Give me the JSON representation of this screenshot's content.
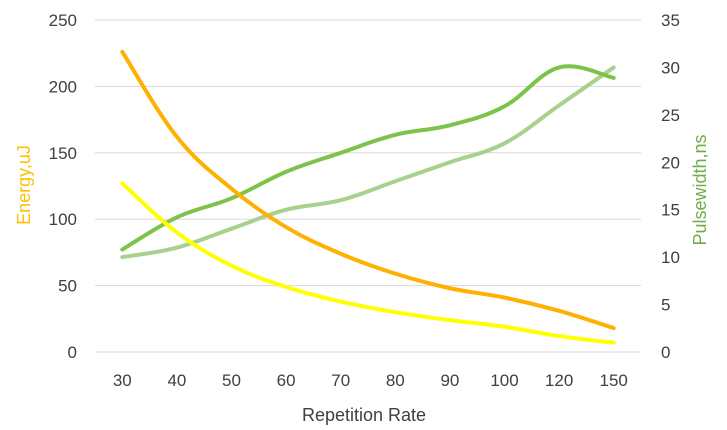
{
  "chart_data": {
    "type": "line",
    "xlabel": "Repetition Rate",
    "ylabel_left": "Energy,uJ",
    "ylabel_right": "Pulsewidth,ns",
    "categories": [
      "30",
      "40",
      "50",
      "60",
      "70",
      "80",
      "90",
      "100",
      "120",
      "150"
    ],
    "ylim_left": [
      0,
      250
    ],
    "ylim_right": [
      0,
      35
    ],
    "yticks_left": [
      "0",
      "50",
      "100",
      "150",
      "200",
      "250"
    ],
    "yticks_right": [
      "0",
      "5",
      "10",
      "15",
      "20",
      "25",
      "30",
      "35"
    ],
    "grid": true,
    "series": [
      {
        "axis": "left",
        "color": "#FFB000",
        "values": [
          226,
          162,
          123,
          94,
          74,
          59,
          48,
          41,
          31,
          18
        ]
      },
      {
        "axis": "left",
        "color": "#FFFF00",
        "values": [
          127,
          90,
          65,
          49,
          38,
          30,
          24,
          19,
          12,
          7
        ]
      },
      {
        "axis": "right",
        "color": "#7DC34A",
        "values": [
          10.8,
          14.2,
          16.2,
          19.0,
          21.0,
          22.9,
          23.9,
          25.9,
          30.0,
          28.9
        ]
      },
      {
        "axis": "right",
        "color": "#A9D18E",
        "values": [
          10.0,
          11.0,
          13.0,
          15.0,
          16.0,
          18.0,
          20.0,
          22.0,
          26.0,
          30.0
        ]
      }
    ],
    "axis_label_colors": {
      "left": "#FFC000",
      "right": "#70AD47",
      "x": "#404040"
    }
  }
}
